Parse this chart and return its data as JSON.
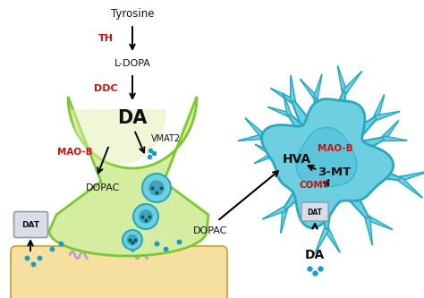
{
  "bg_color": "#ffffff",
  "neuron_fill": "#d4eda0",
  "neuron_edge": "#7dc832",
  "neuron_fill2": "#c0e080",
  "astrocyte_fill": "#6dcfe0",
  "astrocyte_edge": "#28a8c0",
  "astrocyte_inner": "#50c0d8",
  "postsynaptic_fill": "#f5e0a0",
  "postsynaptic_edge": "#d0aa50",
  "dat_box_fill": "#d8dde8",
  "dat_box_edge": "#909aaa",
  "vesicle_fill": "#6dcfe0",
  "vesicle_edge": "#28a8c0",
  "vesicle_inner": "#208090",
  "dot_color": "#1a9bc8",
  "red_color": "#cc1111",
  "black_color": "#111111",
  "receptor_color": "#b0a0d0",
  "labels": {
    "tyrosine": "Tyrosine",
    "th": "TH",
    "ldopa": "L-DOPA",
    "ddc": "DDC",
    "da_big": "DA",
    "vmat2": "VMAT2",
    "maob_n": "MAO-B",
    "dopac_n": "DOPAC",
    "dat_n": "DAT",
    "hva": "HVA",
    "maob_a": "MAO-B",
    "mt3": "3-MT",
    "comt": "COMT",
    "dopac_s": "DOPAC",
    "dat_a": "DAT",
    "da_a": "DA"
  }
}
